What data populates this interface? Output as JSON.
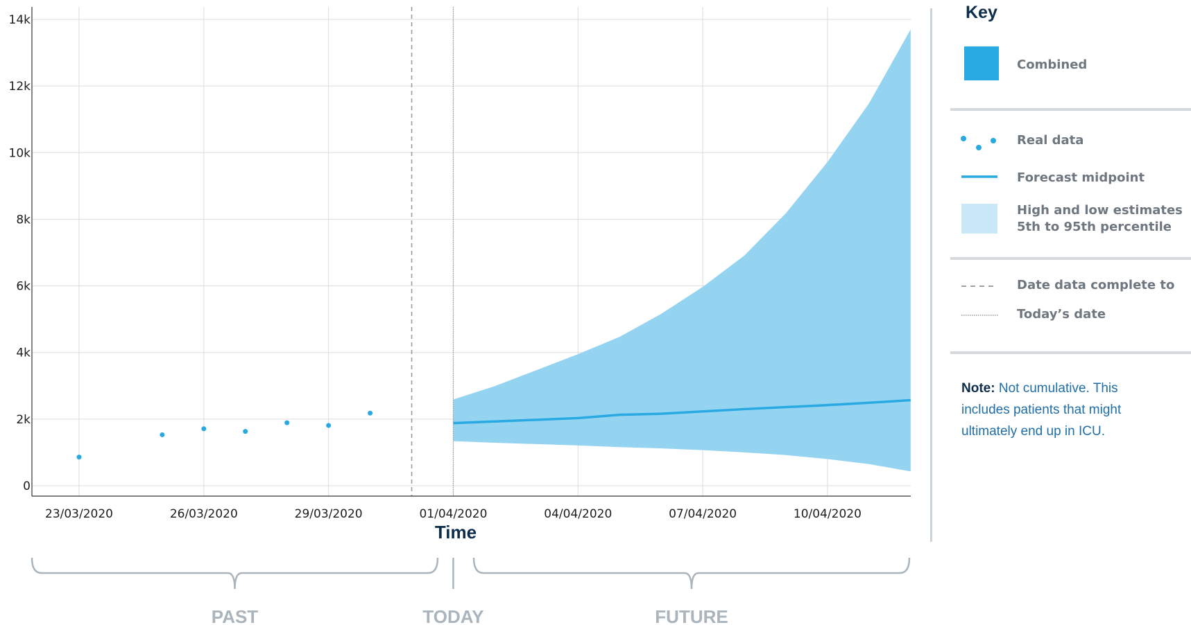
{
  "chart_data": {
    "type": "line",
    "x_dates": [
      "23/03/2020",
      "24/03/2020",
      "25/03/2020",
      "26/03/2020",
      "27/03/2020",
      "28/03/2020",
      "29/03/2020",
      "30/03/2020",
      "31/03/2020",
      "01/04/2020",
      "02/04/2020",
      "03/04/2020",
      "04/04/2020",
      "05/04/2020",
      "06/04/2020",
      "07/04/2020",
      "08/04/2020",
      "09/04/2020",
      "10/04/2020",
      "11/04/2020",
      "12/04/2020"
    ],
    "x_tick_labels": [
      "23/03/2020",
      "26/03/2020",
      "29/03/2020",
      "01/04/2020",
      "04/04/2020",
      "07/04/2020",
      "10/04/2020"
    ],
    "y_tick_labels": [
      "0",
      "2k",
      "4k",
      "6k",
      "8k",
      "10k",
      "12k",
      "14k"
    ],
    "ylim": [
      0,
      14000
    ],
    "xlabel": "Time",
    "grid": true,
    "series": [
      {
        "name": "Real data",
        "kind": "points",
        "points": [
          {
            "x": "23/03/2020",
            "y": 860
          },
          {
            "x": "25/03/2020",
            "y": 1530
          },
          {
            "x": "26/03/2020",
            "y": 1710
          },
          {
            "x": "27/03/2020",
            "y": 1630
          },
          {
            "x": "28/03/2020",
            "y": 1890
          },
          {
            "x": "29/03/2020",
            "y": 1810
          },
          {
            "x": "30/03/2020",
            "y": 2180
          }
        ]
      },
      {
        "name": "Forecast midpoint",
        "kind": "line",
        "points": [
          {
            "x": "01/04/2020",
            "y": 1880
          },
          {
            "x": "02/04/2020",
            "y": 1930
          },
          {
            "x": "03/04/2020",
            "y": 1980
          },
          {
            "x": "04/04/2020",
            "y": 2030
          },
          {
            "x": "05/04/2020",
            "y": 2130
          },
          {
            "x": "06/04/2020",
            "y": 2160
          },
          {
            "x": "07/04/2020",
            "y": 2230
          },
          {
            "x": "08/04/2020",
            "y": 2300
          },
          {
            "x": "09/04/2020",
            "y": 2360
          },
          {
            "x": "10/04/2020",
            "y": 2420
          },
          {
            "x": "11/04/2020",
            "y": 2490
          },
          {
            "x": "12/04/2020",
            "y": 2570
          }
        ]
      },
      {
        "name": "High and low estimates 5th to 95th percentile",
        "kind": "band",
        "points": [
          {
            "x": "01/04/2020",
            "low": 1340,
            "high": 2590
          },
          {
            "x": "02/04/2020",
            "low": 1290,
            "high": 2990
          },
          {
            "x": "03/04/2020",
            "low": 1250,
            "high": 3470
          },
          {
            "x": "04/04/2020",
            "low": 1210,
            "high": 3950
          },
          {
            "x": "05/04/2020",
            "low": 1160,
            "high": 4470
          },
          {
            "x": "06/04/2020",
            "low": 1120,
            "high": 5160
          },
          {
            "x": "07/04/2020",
            "low": 1070,
            "high": 5970
          },
          {
            "x": "08/04/2020",
            "low": 1000,
            "high": 6910
          },
          {
            "x": "09/04/2020",
            "low": 920,
            "high": 8180
          },
          {
            "x": "10/04/2020",
            "low": 800,
            "high": 9720
          },
          {
            "x": "11/04/2020",
            "low": 650,
            "high": 11480
          },
          {
            "x": "12/04/2020",
            "low": 430,
            "high": 13700
          }
        ]
      }
    ],
    "markers": [
      {
        "name": "Date data complete to",
        "x": "31/03/2020",
        "style": "dashed"
      },
      {
        "name": "Today's date",
        "x": "01/04/2020",
        "style": "dotted"
      }
    ],
    "sections": [
      {
        "label": "PAST",
        "from": "22/03/2020",
        "to": "31/03/2020"
      },
      {
        "label": "TODAY",
        "at": "01/04/2020"
      },
      {
        "label": "FUTURE",
        "from": "01/04/2020",
        "to": "12/04/2020"
      }
    ],
    "colors": {
      "points": "#29a9e1",
      "line": "#29a9e1",
      "band": "#94d4f1",
      "grid": "#dddddd",
      "marker": "#9a9a9a"
    }
  },
  "key": {
    "title": "Key",
    "items": {
      "combined": "Combined",
      "real_data": "Real data",
      "forecast_midpoint": "Forecast midpoint",
      "range_line1": "High and low estimates",
      "range_line2": "5th to 95th percentile",
      "data_complete": "Date data complete to",
      "todays_date": "Today’s date"
    },
    "note_label": "Note:",
    "note_text": "Not cumulative. This includes patients that might ultimately end up in ICU."
  }
}
